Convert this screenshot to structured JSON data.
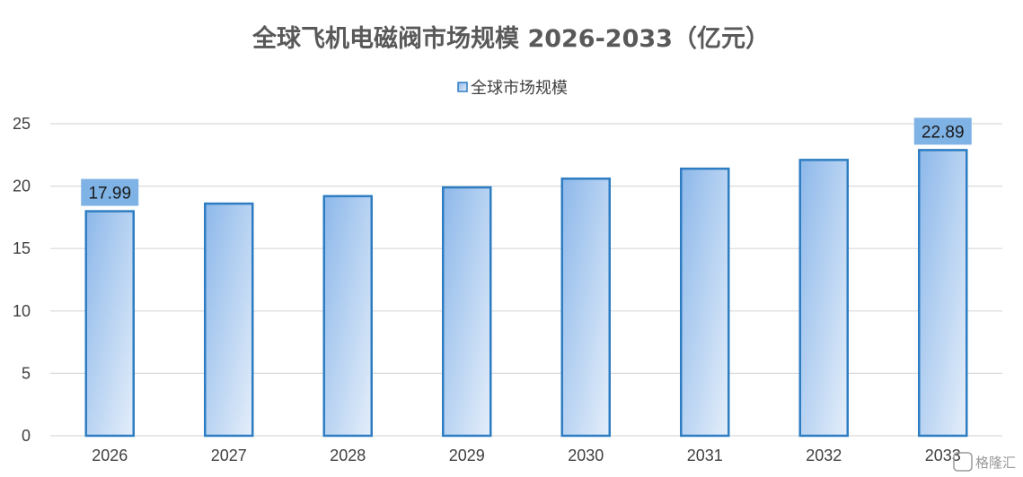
{
  "chart_data": {
    "type": "bar",
    "title": "全球飞机电磁阀市场规模 2026-2033（亿元）",
    "categories": [
      "2026",
      "2027",
      "2028",
      "2029",
      "2030",
      "2031",
      "2032",
      "2033"
    ],
    "series": [
      {
        "name": "全球市场规模",
        "values": [
          17.99,
          18.6,
          19.2,
          19.9,
          20.6,
          21.4,
          22.1,
          22.89
        ]
      }
    ],
    "data_labels": [
      {
        "category": "2026",
        "text": "17.99"
      },
      {
        "category": "2033",
        "text": "22.89"
      }
    ],
    "ylim": [
      0,
      25
    ],
    "yticks": [
      0,
      5,
      10,
      15,
      20,
      25
    ],
    "grid": true,
    "legend_position": "top-center",
    "colors": {
      "bar_fill_dark": "#8db8ea",
      "bar_fill_light": "#e4eefa",
      "bar_border": "#2e7dc2",
      "label_box": "#7fb2e5",
      "gridline": "#d9d9d9"
    }
  },
  "watermark": {
    "icon": "gelonghui-logo-icon",
    "text": "格隆汇"
  }
}
